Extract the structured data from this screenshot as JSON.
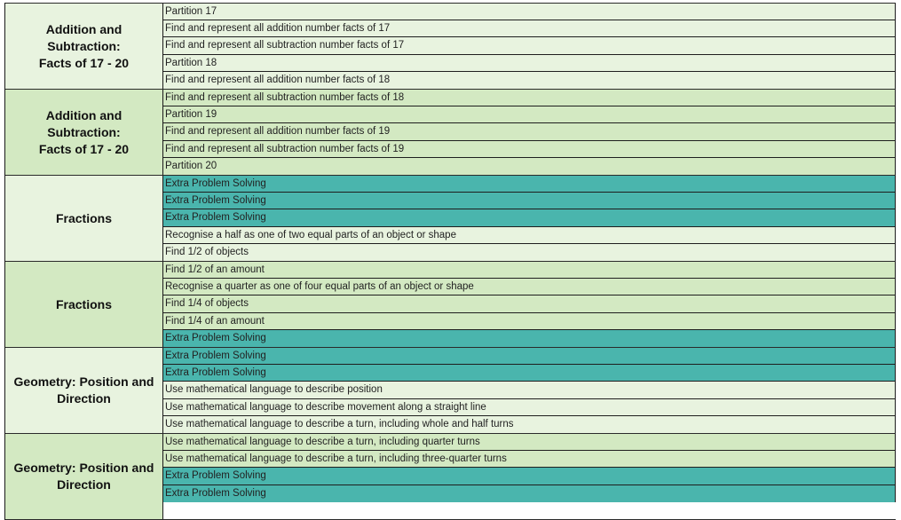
{
  "colors": {
    "light": "#e8f3df",
    "mid": "#d3e9c2",
    "teal": "#4ab5ad"
  },
  "blocks": [
    {
      "title_lines": [
        "Addition and",
        "Subtraction:",
        "Facts of 17 - 20"
      ],
      "shade": "light",
      "rows": [
        {
          "text": "Partition 17",
          "shade": "light"
        },
        {
          "text": "Find and represent all addition number facts of 17",
          "shade": "light"
        },
        {
          "text": "Find and represent all subtraction number facts of 17",
          "shade": "light"
        },
        {
          "text": "Partition 18",
          "shade": "light"
        },
        {
          "text": "Find and represent all addition number facts of 18",
          "shade": "light"
        }
      ]
    },
    {
      "title_lines": [
        "Addition and",
        "Subtraction:",
        "Facts of 17 - 20"
      ],
      "shade": "mid",
      "rows": [
        {
          "text": "Find and represent all subtraction number facts of 18",
          "shade": "mid"
        },
        {
          "text": "Partition 19",
          "shade": "mid"
        },
        {
          "text": "Find and represent all addition number facts of 19",
          "shade": "mid"
        },
        {
          "text": "Find and represent all subtraction number facts of 19",
          "shade": "mid"
        },
        {
          "text": "Partition 20",
          "shade": "mid"
        }
      ]
    },
    {
      "title_lines": [
        "Fractions"
      ],
      "shade": "light",
      "rows": [
        {
          "text": "Extra Problem Solving",
          "shade": "teal"
        },
        {
          "text": "Extra Problem Solving",
          "shade": "teal"
        },
        {
          "text": "Extra Problem Solving",
          "shade": "teal"
        },
        {
          "text": "Recognise a half as one of two equal parts of an object or shape",
          "shade": "light"
        },
        {
          "text": "Find 1/2 of objects",
          "shade": "light"
        }
      ]
    },
    {
      "title_lines": [
        "Fractions"
      ],
      "shade": "mid",
      "rows": [
        {
          "text": "Find 1/2 of an amount",
          "shade": "mid"
        },
        {
          "text": "Recognise a quarter as one of four equal parts of an object or shape",
          "shade": "mid"
        },
        {
          "text": "Find 1/4 of objects",
          "shade": "mid"
        },
        {
          "text": "Find 1/4 of an amount",
          "shade": "mid"
        },
        {
          "text": "Extra Problem Solving",
          "shade": "teal"
        }
      ]
    },
    {
      "title_lines": [
        "Geometry: Position and",
        "Direction"
      ],
      "shade": "light",
      "rows": [
        {
          "text": "Extra Problem Solving",
          "shade": "teal"
        },
        {
          "text": "Extra Problem Solving",
          "shade": "teal"
        },
        {
          "text": "Use mathematical language to describe position",
          "shade": "light"
        },
        {
          "text": "Use mathematical language to describe movement along a straight line",
          "shade": "light"
        },
        {
          "text": "Use mathematical language to describe a turn, including whole and half turns",
          "shade": "light"
        }
      ]
    },
    {
      "title_lines": [
        "Geometry: Position and",
        "Direction"
      ],
      "shade": "mid",
      "rows": [
        {
          "text": "Use mathematical language to describe a turn, including quarter turns",
          "shade": "mid"
        },
        {
          "text": "Use mathematical language to describe a turn, including three-quarter turns",
          "shade": "mid"
        },
        {
          "text": "Extra Problem Solving",
          "shade": "teal"
        },
        {
          "text": "Extra Problem Solving",
          "shade": "teal"
        }
      ]
    }
  ]
}
